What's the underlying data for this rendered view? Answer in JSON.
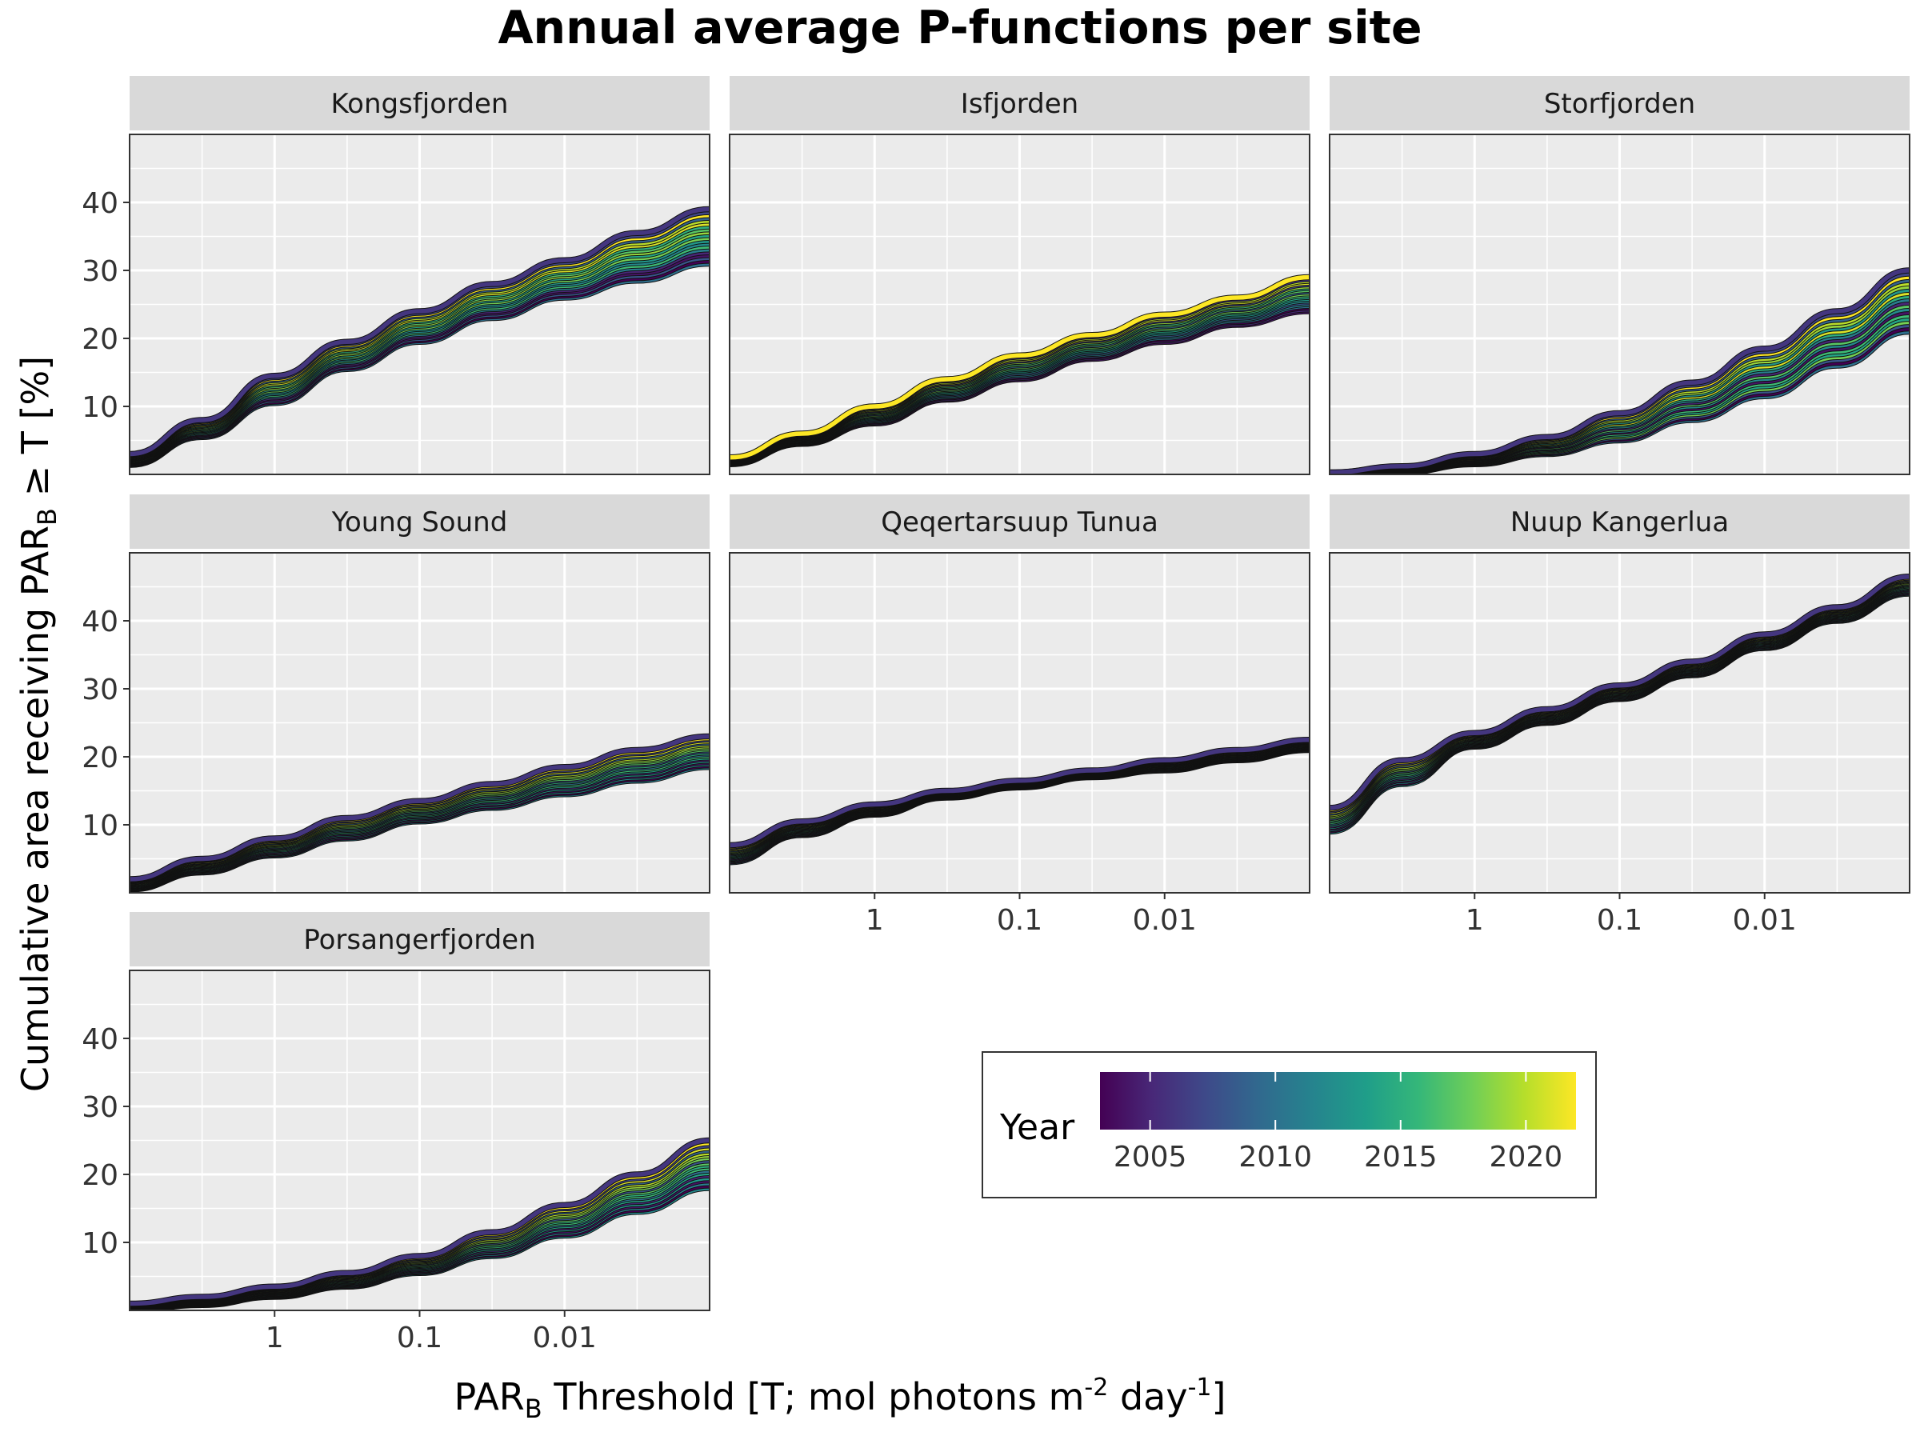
{
  "chart_data": {
    "type": "line",
    "title": "Annual average P-functions per site",
    "xlabel": {
      "main": "PAR",
      "sub": "B",
      "rest": " Threshold [T; mol photons m",
      "sup1": "-2",
      "mid": " day",
      "sup2": "-1",
      "end": "]"
    },
    "ylabel": {
      "main": "Cumulative area receiving PAR",
      "sub": "B",
      "rest": " ≥ T [%]"
    },
    "x_scale": "log10, reversed",
    "xlim": [
      10,
      0.001
    ],
    "x_ticks": [
      {
        "value": 1,
        "label": "1"
      },
      {
        "value": 0.1,
        "label": "0.1"
      },
      {
        "value": 0.01,
        "label": "0.01"
      }
    ],
    "ylim": [
      0,
      50
    ],
    "y_ticks": [
      {
        "value": 10,
        "label": "10"
      },
      {
        "value": 20,
        "label": "20"
      },
      {
        "value": 30,
        "label": "30"
      },
      {
        "value": 40,
        "label": "40"
      }
    ],
    "grid": true,
    "years": [
      2003,
      2004,
      2005,
      2006,
      2007,
      2008,
      2009,
      2010,
      2011,
      2012,
      2013,
      2014,
      2015,
      2016,
      2017,
      2018,
      2019,
      2020,
      2021,
      2022
    ],
    "x": [
      10,
      3.16,
      1,
      0.316,
      0.1,
      0.0316,
      0.01,
      0.00316,
      0.001
    ],
    "facets": [
      {
        "site": "Kongsfjorden",
        "low": [
          1.4,
          5.5,
          10.5,
          15.5,
          19.5,
          23.0,
          26.0,
          28.5,
          31.0
        ],
        "high": [
          3.0,
          8.0,
          14.5,
          19.5,
          24.0,
          28.0,
          31.5,
          35.5,
          39.0
        ],
        "order": [
          2010,
          2003,
          2008,
          2004,
          2005,
          2011,
          2016,
          2012,
          2013,
          2018,
          2014,
          2019,
          2017,
          2015,
          2021,
          2020,
          2009,
          2022,
          2007,
          2006
        ]
      },
      {
        "site": "Isfjorden",
        "low": [
          1.5,
          4.5,
          7.5,
          11.0,
          14.0,
          17.0,
          19.5,
          22.0,
          24.0
        ],
        "high": [
          2.5,
          6.0,
          10.0,
          14.0,
          17.5,
          20.5,
          23.5,
          26.0,
          29.0
        ],
        "order": [
          2004,
          2005,
          2003,
          2010,
          2011,
          2008,
          2012,
          2013,
          2014,
          2016,
          2018,
          2009,
          2017,
          2015,
          2019,
          2007,
          2021,
          2020,
          2006,
          2022
        ]
      },
      {
        "site": "Storfjorden",
        "low": [
          0.0,
          0.3,
          1.5,
          3.0,
          5.0,
          8.0,
          11.5,
          16.0,
          21.0
        ],
        "high": [
          0.3,
          1.2,
          3.0,
          5.5,
          9.0,
          13.5,
          18.5,
          24.0,
          30.0
        ],
        "order": [
          2010,
          2003,
          2008,
          2018,
          2014,
          2016,
          2004,
          2012,
          2017,
          2005,
          2011,
          2015,
          2021,
          2013,
          2019,
          2020,
          2009,
          2022,
          2007,
          2006
        ]
      },
      {
        "site": "Young Sound",
        "low": [
          0.5,
          3.0,
          5.5,
          8.0,
          10.5,
          12.5,
          14.5,
          16.5,
          18.5
        ],
        "high": [
          2.0,
          5.0,
          8.0,
          11.0,
          13.5,
          16.0,
          18.5,
          21.0,
          23.0
        ],
        "order": [
          2011,
          2003,
          2012,
          2004,
          2013,
          2005,
          2014,
          2016,
          2010,
          2015,
          2008,
          2017,
          2018,
          2019,
          2020,
          2009,
          2021,
          2007,
          2022,
          2006
        ]
      },
      {
        "site": "Qeqertarsuup Tunua",
        "low": [
          4.5,
          8.5,
          11.5,
          14.0,
          15.5,
          17.0,
          18.0,
          19.5,
          21.0
        ],
        "high": [
          7.0,
          10.5,
          13.0,
          15.0,
          16.5,
          18.0,
          19.5,
          21.0,
          22.5
        ],
        "order": [
          2010,
          2003,
          2011,
          2004,
          2012,
          2005,
          2013,
          2014,
          2016,
          2015,
          2008,
          2017,
          2018,
          2019,
          2009,
          2020,
          2021,
          2007,
          2022,
          2006
        ]
      },
      {
        "site": "Nuup Kangerlua",
        "low": [
          9.0,
          16.0,
          21.5,
          25.0,
          28.5,
          32.0,
          36.0,
          40.0,
          44.0
        ],
        "high": [
          12.5,
          19.5,
          23.5,
          27.0,
          30.5,
          34.0,
          38.0,
          42.0,
          46.5
        ],
        "order": [
          2012,
          2003,
          2011,
          2004,
          2013,
          2005,
          2014,
          2010,
          2016,
          2015,
          2017,
          2008,
          2018,
          2019,
          2020,
          2009,
          2021,
          2007,
          2022,
          2006
        ]
      },
      {
        "site": "Porsangerfjorden",
        "low": [
          0.0,
          0.8,
          2.0,
          3.5,
          5.5,
          8.0,
          11.0,
          14.5,
          18.0
        ],
        "high": [
          1.0,
          2.0,
          3.5,
          5.5,
          8.0,
          11.5,
          15.5,
          20.0,
          25.0
        ],
        "order": [
          2012,
          2003,
          2011,
          2004,
          2013,
          2005,
          2014,
          2010,
          2016,
          2015,
          2017,
          2008,
          2018,
          2019,
          2020,
          2009,
          2021,
          2007,
          2022,
          2006
        ]
      }
    ],
    "legend": {
      "title": "Year",
      "ticks": [
        2005,
        2010,
        2015,
        2020
      ],
      "range": [
        2003,
        2022
      ],
      "placement": "inside empty facet area, bottom-right"
    },
    "colormap": [
      "#440154",
      "#482878",
      "#3e4989",
      "#31688e",
      "#26828e",
      "#1f9e89",
      "#35b779",
      "#6ece58",
      "#b5de2b",
      "#fde725"
    ]
  }
}
